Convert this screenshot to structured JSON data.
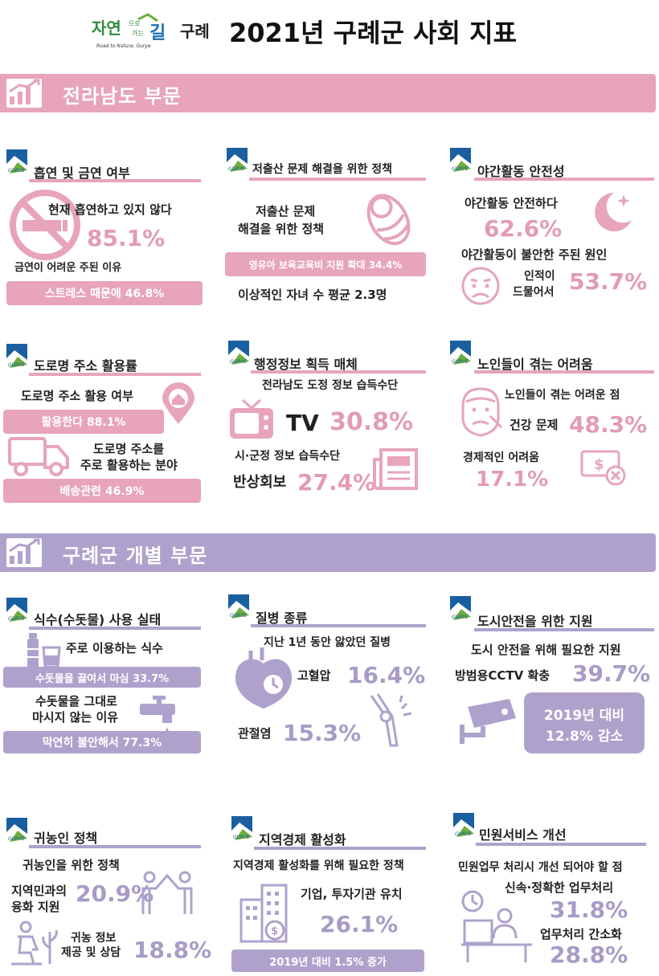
{
  "header": {
    "logo_text": "자연으로 가는 길 구례",
    "logo_sub": "Road to Nature, Gurye",
    "title": "2021년 구례군 사회 지표"
  },
  "sections": {
    "jeonnam": "전라남도 부문",
    "gurye": "구례군 개별 부문"
  },
  "colors": {
    "pink": "#e7a4bc",
    "purple": "#aea2cc",
    "pink_text": "#e39bb5",
    "purple_text": "#a89bc6"
  },
  "smoking": {
    "title": "흡연 및 금연 여부",
    "q1": "현재 흡연하고 있지 않다",
    "v1": "85.1%",
    "q2": "금연이 어려운 주된 이유",
    "bar": "스트레스 때문에 46.8%",
    "icon": "no-smoking-icon"
  },
  "birth": {
    "title": "저출산 문제 해결을 위한 정책",
    "q1_line1": "저출산 문제",
    "q1_line2": "해결을 위한 정책",
    "bar": "영유아 보육교육비 지원 확대 34.4%",
    "q2": "이상적인 자녀 수 평균 2.3명",
    "icon": "baby-icon"
  },
  "night": {
    "title": "야간활동 안전성",
    "q1": "야간활동 안전하다",
    "v1": "62.6%",
    "q2": "야간활동이 불안한 주된 원인",
    "r_line1": "인적이",
    "r_line2": "드물어서",
    "v2": "53.7%",
    "icon": "moon-icon"
  },
  "address": {
    "title": "도로명 주소 활용률",
    "q1": "도로명 주소 활용 여부",
    "bar1": "활용한다 88.1%",
    "q2_line1": "도로명 주소를",
    "q2_line2": "주로 활용하는 분야",
    "bar2": "배송관련 46.9%",
    "icon": "truck-icon"
  },
  "info": {
    "title": "행정정보 획득 매체",
    "q1": "전라남도 도정 정보 습득수단",
    "label1": "TV",
    "v1": "30.8%",
    "q2": "시·군정 정보 습득수단",
    "label2": "반상회보",
    "v2": "27.4%",
    "icon": "tv-icon"
  },
  "elderly": {
    "title": "노인들이 겪는 어려움",
    "q1": "노인들이 겪는 어려운 점",
    "label1": "건강 문제",
    "v1": "48.3%",
    "label2": "경제적인 어려움",
    "v2": "17.1%",
    "icon": "elderly-icon"
  },
  "water": {
    "title": "식수(수돗물) 사용 실태",
    "q1": "주로 이용하는 식수",
    "bar1": "수돗물을 끓여서 마심 33.7%",
    "q2_line1": "수돗물을 그대로",
    "q2_line2": "마시지 않는 이유",
    "bar2": "막연히 불안해서 77.3%",
    "icon": "water-bottle-icon"
  },
  "disease": {
    "title": "질병 종류",
    "q1": "지난 1년 동안 앓았던 질병",
    "label1": "고혈압",
    "v1": "16.4%",
    "label2": "관절염",
    "v2": "15.3%",
    "icon": "heart-icon"
  },
  "safety": {
    "title": "도시안전을 위한 지원",
    "q1": "도시 안전을 위해 필요한 지원",
    "label1": "방범용CCTV 확충",
    "v1": "39.7%",
    "box_line1": "2019년 대비",
    "box_line2": "12.8% 감소",
    "icon": "cctv-icon"
  },
  "farm": {
    "title": "귀농인 정책",
    "q1": "귀농인을 위한 정책",
    "label1_line1": "지역민과의",
    "label1_line2": "융화 지원",
    "v1": "20.9%",
    "label2_line1": "귀농 정보",
    "label2_line2": "제공 및 상담",
    "v2": "18.8%",
    "icon": "handshake-icon"
  },
  "economy": {
    "title": "지역경제 활성화",
    "q1": "지역경제 활성화를 위해 필요한 정책",
    "label1": "기업, 투자기관 유치",
    "v1": "26.1%",
    "bar": "2019년 대비 1.5% 증가",
    "icon": "building-icon"
  },
  "civil": {
    "title": "민원서비스 개선",
    "q1": "민원업무 처리시 개선 되어야 할 점",
    "label1": "신속·정확한 업무처리",
    "v1": "31.8%",
    "label2": "업무처리 간소화",
    "v2": "28.8%",
    "icon": "clerk-icon"
  }
}
